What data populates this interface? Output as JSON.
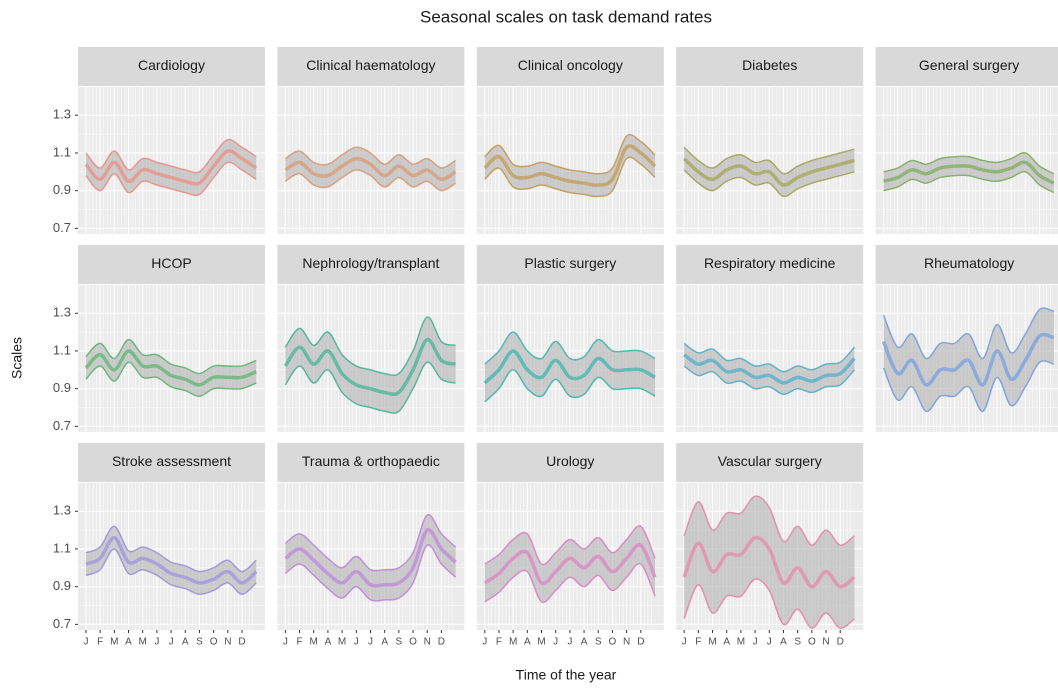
{
  "chart_data": {
    "type": "line",
    "title": "Seasonal scales on task demand rates",
    "xlabel": "Time of the year",
    "ylabel": "Scales",
    "x": [
      1,
      2,
      3,
      4,
      5,
      6,
      7,
      8,
      9,
      10,
      11,
      12,
      13
    ],
    "xlim": [
      0.44,
      13.62
    ],
    "ylim": [
      0.67,
      1.45
    ],
    "xticks": [
      {
        "value": 1,
        "label": "J"
      },
      {
        "value": 2,
        "label": "F"
      },
      {
        "value": 3,
        "label": "M"
      },
      {
        "value": 4,
        "label": "A"
      },
      {
        "value": 5,
        "label": "M"
      },
      {
        "value": 6,
        "label": "J"
      },
      {
        "value": 7,
        "label": "J"
      },
      {
        "value": 8,
        "label": "A"
      },
      {
        "value": 9,
        "label": "S"
      },
      {
        "value": 10,
        "label": "O"
      },
      {
        "value": 11,
        "label": "N"
      },
      {
        "value": 12,
        "label": "D"
      }
    ],
    "yticks": [
      0.7,
      0.9,
      1.1,
      1.3
    ],
    "grid": true,
    "columns": 5,
    "panels": [
      {
        "name": "Cardiology",
        "color": "#e8978b",
        "values": [
          1.04,
          0.96,
          1.05,
          0.95,
          1.01,
          0.99,
          0.97,
          0.95,
          0.94,
          1.03,
          1.11,
          1.07,
          1.02
        ],
        "lower": [
          0.98,
          0.9,
          0.99,
          0.89,
          0.95,
          0.93,
          0.91,
          0.89,
          0.88,
          0.97,
          1.05,
          1.01,
          0.96
        ],
        "upper": [
          1.1,
          1.02,
          1.11,
          1.01,
          1.07,
          1.05,
          1.03,
          1.01,
          1.0,
          1.09,
          1.17,
          1.13,
          1.08
        ]
      },
      {
        "name": "Clinical haematology",
        "color": "#d9a07c",
        "values": [
          1.01,
          1.05,
          0.99,
          0.98,
          1.03,
          1.07,
          1.04,
          0.98,
          1.03,
          0.98,
          1.01,
          0.96,
          1.0
        ],
        "lower": [
          0.95,
          0.99,
          0.93,
          0.92,
          0.97,
          1.01,
          0.98,
          0.92,
          0.97,
          0.92,
          0.95,
          0.9,
          0.94
        ],
        "upper": [
          1.07,
          1.11,
          1.05,
          1.04,
          1.09,
          1.13,
          1.1,
          1.04,
          1.09,
          1.04,
          1.07,
          1.02,
          1.06
        ]
      },
      {
        "name": "Clinical oncology",
        "color": "#c6a063",
        "values": [
          1.02,
          1.08,
          0.98,
          0.97,
          0.99,
          0.97,
          0.95,
          0.94,
          0.93,
          0.96,
          1.13,
          1.1,
          1.03
        ],
        "lower": [
          0.96,
          1.02,
          0.92,
          0.91,
          0.93,
          0.91,
          0.89,
          0.88,
          0.87,
          0.9,
          1.07,
          1.04,
          0.97
        ],
        "upper": [
          1.08,
          1.14,
          1.04,
          1.03,
          1.05,
          1.03,
          1.01,
          1.0,
          0.99,
          1.02,
          1.19,
          1.16,
          1.09
        ]
      },
      {
        "name": "Diabetes",
        "color": "#a8aa60",
        "values": [
          1.07,
          1.0,
          0.96,
          1.01,
          1.03,
          0.99,
          1.0,
          0.93,
          0.97,
          1.0,
          1.02,
          1.04,
          1.06
        ],
        "lower": [
          1.01,
          0.94,
          0.9,
          0.95,
          0.97,
          0.93,
          0.94,
          0.87,
          0.91,
          0.94,
          0.96,
          0.98,
          1.0
        ],
        "upper": [
          1.13,
          1.06,
          1.02,
          1.07,
          1.09,
          1.05,
          1.06,
          0.99,
          1.03,
          1.06,
          1.08,
          1.1,
          1.12
        ]
      },
      {
        "name": "General surgery",
        "color": "#86b26a",
        "values": [
          0.95,
          0.97,
          1.01,
          0.99,
          1.02,
          1.03,
          1.03,
          1.01,
          1.0,
          1.02,
          1.05,
          0.98,
          0.94
        ],
        "lower": [
          0.9,
          0.92,
          0.96,
          0.94,
          0.97,
          0.98,
          0.98,
          0.96,
          0.95,
          0.97,
          1.0,
          0.93,
          0.89
        ],
        "upper": [
          1.0,
          1.02,
          1.06,
          1.04,
          1.07,
          1.08,
          1.08,
          1.06,
          1.05,
          1.07,
          1.1,
          1.03,
          0.99
        ]
      },
      {
        "name": "HCOP",
        "color": "#6cb87c",
        "values": [
          1.01,
          1.08,
          1.0,
          1.1,
          1.02,
          1.02,
          0.97,
          0.95,
          0.92,
          0.96,
          0.96,
          0.96,
          0.99
        ],
        "lower": [
          0.95,
          1.02,
          0.94,
          1.04,
          0.96,
          0.96,
          0.91,
          0.89,
          0.86,
          0.9,
          0.9,
          0.9,
          0.93
        ],
        "upper": [
          1.07,
          1.14,
          1.06,
          1.16,
          1.08,
          1.08,
          1.03,
          1.01,
          0.98,
          1.02,
          1.02,
          1.02,
          1.05
        ]
      },
      {
        "name": "Nephrology/transplant",
        "color": "#55b89c",
        "values": [
          1.02,
          1.12,
          1.03,
          1.1,
          0.98,
          0.92,
          0.9,
          0.88,
          0.88,
          1.0,
          1.16,
          1.05,
          1.03
        ],
        "lower": [
          0.92,
          1.02,
          0.93,
          1.0,
          0.88,
          0.82,
          0.8,
          0.78,
          0.78,
          0.9,
          1.04,
          0.95,
          0.93
        ],
        "upper": [
          1.12,
          1.22,
          1.13,
          1.2,
          1.08,
          1.02,
          1.0,
          0.98,
          0.98,
          1.1,
          1.28,
          1.15,
          1.13
        ]
      },
      {
        "name": "Plastic surgery",
        "color": "#4dbab2",
        "values": [
          0.93,
          1.0,
          1.1,
          1.0,
          0.96,
          1.05,
          0.96,
          0.97,
          1.06,
          1.0,
          1.0,
          1.0,
          0.96
        ],
        "lower": [
          0.83,
          0.9,
          1.0,
          0.9,
          0.86,
          0.95,
          0.86,
          0.87,
          0.96,
          0.9,
          0.9,
          0.9,
          0.86
        ],
        "upper": [
          1.03,
          1.1,
          1.2,
          1.1,
          1.06,
          1.15,
          1.06,
          1.07,
          1.16,
          1.1,
          1.1,
          1.1,
          1.06
        ]
      },
      {
        "name": "Respiratory medicine",
        "color": "#5fb3cc",
        "values": [
          1.08,
          1.03,
          1.05,
          0.99,
          1.0,
          0.96,
          0.97,
          0.93,
          0.96,
          0.94,
          0.97,
          0.98,
          1.06
        ],
        "lower": [
          1.02,
          0.97,
          0.99,
          0.93,
          0.94,
          0.9,
          0.91,
          0.87,
          0.9,
          0.88,
          0.91,
          0.92,
          1.0
        ],
        "upper": [
          1.14,
          1.09,
          1.11,
          1.05,
          1.06,
          1.02,
          1.03,
          0.99,
          1.02,
          1.0,
          1.03,
          1.04,
          1.12
        ]
      },
      {
        "name": "Rheumatology",
        "color": "#7fa6df",
        "values": [
          1.15,
          0.98,
          1.05,
          0.92,
          1.0,
          1.0,
          1.05,
          0.92,
          1.1,
          0.95,
          1.05,
          1.18,
          1.17
        ],
        "lower": [
          1.01,
          0.84,
          0.91,
          0.78,
          0.86,
          0.86,
          0.91,
          0.78,
          0.96,
          0.81,
          0.91,
          1.04,
          1.03
        ],
        "upper": [
          1.29,
          1.12,
          1.19,
          1.06,
          1.14,
          1.14,
          1.19,
          1.06,
          1.24,
          1.09,
          1.19,
          1.32,
          1.31
        ]
      },
      {
        "name": "Stroke assessment",
        "color": "#a29ade",
        "values": [
          1.02,
          1.05,
          1.16,
          1.03,
          1.05,
          1.02,
          0.97,
          0.95,
          0.92,
          0.94,
          0.98,
          0.92,
          0.98
        ],
        "lower": [
          0.96,
          0.99,
          1.1,
          0.97,
          0.99,
          0.96,
          0.91,
          0.89,
          0.86,
          0.88,
          0.92,
          0.86,
          0.92
        ],
        "upper": [
          1.08,
          1.11,
          1.22,
          1.09,
          1.11,
          1.08,
          1.03,
          1.01,
          0.98,
          1.0,
          1.04,
          0.98,
          1.04
        ]
      },
      {
        "name": "Trauma & orthopaedic",
        "color": "#c28fda",
        "values": [
          1.05,
          1.1,
          1.04,
          0.97,
          0.92,
          0.98,
          0.91,
          0.91,
          0.92,
          1.0,
          1.2,
          1.1,
          1.03
        ],
        "lower": [
          0.97,
          1.02,
          0.96,
          0.89,
          0.84,
          0.9,
          0.83,
          0.83,
          0.84,
          0.92,
          1.12,
          1.02,
          0.95
        ],
        "upper": [
          1.13,
          1.18,
          1.12,
          1.05,
          1.0,
          1.06,
          0.99,
          0.99,
          1.0,
          1.08,
          1.28,
          1.18,
          1.11
        ]
      },
      {
        "name": "Urology",
        "color": "#da8cc6",
        "values": [
          0.92,
          0.97,
          1.05,
          1.08,
          0.92,
          0.98,
          1.05,
          1.0,
          1.06,
          0.98,
          1.05,
          1.12,
          0.95
        ],
        "lower": [
          0.82,
          0.87,
          0.95,
          0.98,
          0.82,
          0.88,
          0.95,
          0.9,
          0.96,
          0.88,
          0.95,
          1.02,
          0.85
        ],
        "upper": [
          1.02,
          1.07,
          1.15,
          1.18,
          1.02,
          1.08,
          1.15,
          1.1,
          1.16,
          1.08,
          1.15,
          1.22,
          1.05
        ]
      },
      {
        "name": "Vascular surgery",
        "color": "#e490ae",
        "values": [
          0.95,
          1.13,
          0.98,
          1.07,
          1.07,
          1.16,
          1.1,
          0.92,
          1.0,
          0.9,
          0.98,
          0.9,
          0.95
        ],
        "lower": [
          0.73,
          0.91,
          0.76,
          0.85,
          0.85,
          0.94,
          0.88,
          0.7,
          0.78,
          0.68,
          0.76,
          0.68,
          0.73
        ],
        "upper": [
          1.17,
          1.35,
          1.2,
          1.29,
          1.29,
          1.38,
          1.32,
          1.14,
          1.22,
          1.12,
          1.2,
          1.12,
          1.17
        ]
      }
    ]
  }
}
